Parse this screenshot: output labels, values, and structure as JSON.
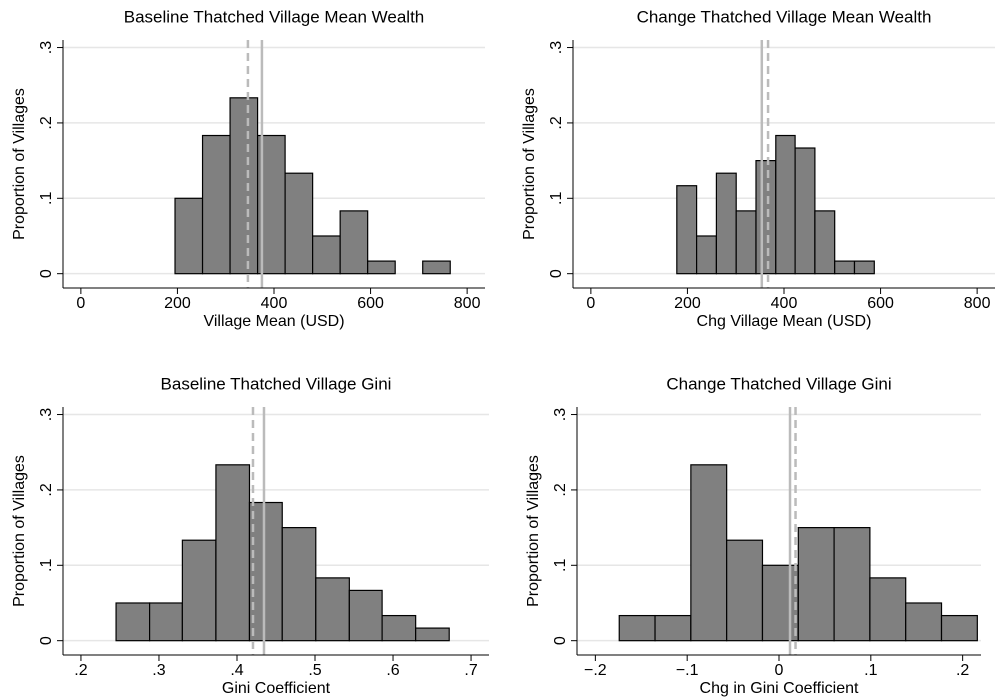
{
  "chart_data": [
    {
      "type": "histogram",
      "title": "Baseline Thatched Village Mean Wealth",
      "xlabel": "Village Mean (USD)",
      "ylabel": "Proportion of Villages",
      "bins": [
        195,
        252,
        309,
        366,
        423,
        480,
        537,
        594,
        651,
        708,
        765
      ],
      "values": [
        0.1,
        0.1833,
        0.2333,
        0.1833,
        0.1333,
        0.05,
        0.0833,
        0.0167,
        0,
        0.0167
      ],
      "color": "#808080",
      "xlim": [
        -37,
        837
      ],
      "ylim": [
        -0.019,
        0.31
      ],
      "xticks": [
        0,
        200,
        400,
        600,
        800
      ],
      "yticks": [
        0,
        {
          "value": 0.1,
          "label": ".1"
        },
        {
          "value": 0.2,
          "label": ".2"
        },
        {
          "value": 0.3,
          "label": ".3"
        }
      ],
      "grid": true,
      "reference_lines": [
        {
          "value": 346,
          "style": "dashed",
          "color": "#bbbbbb"
        },
        {
          "value": 375,
          "style": "solid",
          "color": "#bbbbbb"
        }
      ]
    },
    {
      "type": "histogram",
      "title": "Change Thatched Village Mean Wealth",
      "xlabel": "Chg Village Mean (USD)",
      "ylabel": "Proportion of Villages",
      "bins": [
        178,
        219,
        260,
        301,
        342,
        383,
        423,
        464,
        505,
        546,
        587
      ],
      "values": [
        0.1167,
        0.05,
        0.1333,
        0.0833,
        0.15,
        0.1833,
        0.1667,
        0.0833,
        0.0167,
        0.0167
      ],
      "color": "#808080",
      "xlim": [
        -37,
        837
      ],
      "ylim": [
        -0.019,
        0.31
      ],
      "xticks": [
        0,
        200,
        400,
        600,
        800
      ],
      "yticks": [
        0,
        {
          "value": 0.1,
          "label": ".1"
        },
        {
          "value": 0.2,
          "label": ".2"
        },
        {
          "value": 0.3,
          "label": ".3"
        }
      ],
      "grid": true,
      "reference_lines": [
        {
          "value": 354,
          "style": "solid",
          "color": "#bbbbbb"
        },
        {
          "value": 367,
          "style": "dashed",
          "color": "#bbbbbb"
        }
      ]
    },
    {
      "type": "histogram",
      "title": "Baseline Thatched Village Gini",
      "xlabel": "Gini Coefficient",
      "ylabel": "Proportion of Villages",
      "bins": [
        0.245,
        0.288,
        0.33,
        0.373,
        0.416,
        0.458,
        0.501,
        0.544,
        0.586,
        0.629,
        0.672
      ],
      "values": [
        0.05,
        0.05,
        0.1333,
        0.2333,
        0.1833,
        0.15,
        0.0833,
        0.0667,
        0.0333,
        0.0167
      ],
      "color": "#808080",
      "xlim": [
        0.177,
        0.723
      ],
      "ylim": [
        -0.019,
        0.31
      ],
      "xticks": [
        {
          "value": 0.2,
          "label": ".2"
        },
        {
          "value": 0.3,
          "label": ".3"
        },
        {
          "value": 0.4,
          "label": ".4"
        },
        {
          "value": 0.5,
          "label": ".5"
        },
        {
          "value": 0.6,
          "label": ".6"
        },
        {
          "value": 0.7,
          "label": ".7"
        }
      ],
      "yticks": [
        0,
        {
          "value": 0.1,
          "label": ".1"
        },
        {
          "value": 0.2,
          "label": ".2"
        },
        {
          "value": 0.3,
          "label": ".3"
        }
      ],
      "grid": true,
      "reference_lines": [
        {
          "value": 0.4205,
          "style": "dashed",
          "color": "#bbbbbb"
        },
        {
          "value": 0.4346,
          "style": "solid",
          "color": "#bbbbbb"
        }
      ]
    },
    {
      "type": "histogram",
      "title": "Change Thatched Village Gini",
      "xlabel": "Chg in Gini Coefficient",
      "ylabel": "Proportion of Villages",
      "bins": [
        -0.174,
        -0.135,
        -0.096,
        -0.057,
        -0.018,
        0.021,
        0.06,
        0.099,
        0.138,
        0.177,
        0.216
      ],
      "values": [
        0.0333,
        0.0333,
        0.2333,
        0.1333,
        0.1,
        0.15,
        0.15,
        0.0833,
        0.05,
        0.0333
      ],
      "color": "#808080",
      "xlim": [
        -0.22,
        0.22
      ],
      "ylim": [
        -0.019,
        0.31
      ],
      "xticks": [
        {
          "value": -0.2,
          "label": "−.2"
        },
        {
          "value": -0.1,
          "label": "−.1"
        },
        0,
        {
          "value": 0.1,
          "label": ".1"
        },
        {
          "value": 0.2,
          "label": ".2"
        }
      ],
      "yticks": [
        0,
        {
          "value": 0.1,
          "label": ".1"
        },
        {
          "value": 0.2,
          "label": ".2"
        },
        {
          "value": 0.3,
          "label": ".3"
        }
      ],
      "grid": true,
      "reference_lines": [
        {
          "value": 0.012,
          "style": "solid",
          "color": "#bbbbbb"
        },
        {
          "value": 0.018,
          "style": "dashed",
          "color": "#bbbbbb"
        }
      ]
    }
  ]
}
